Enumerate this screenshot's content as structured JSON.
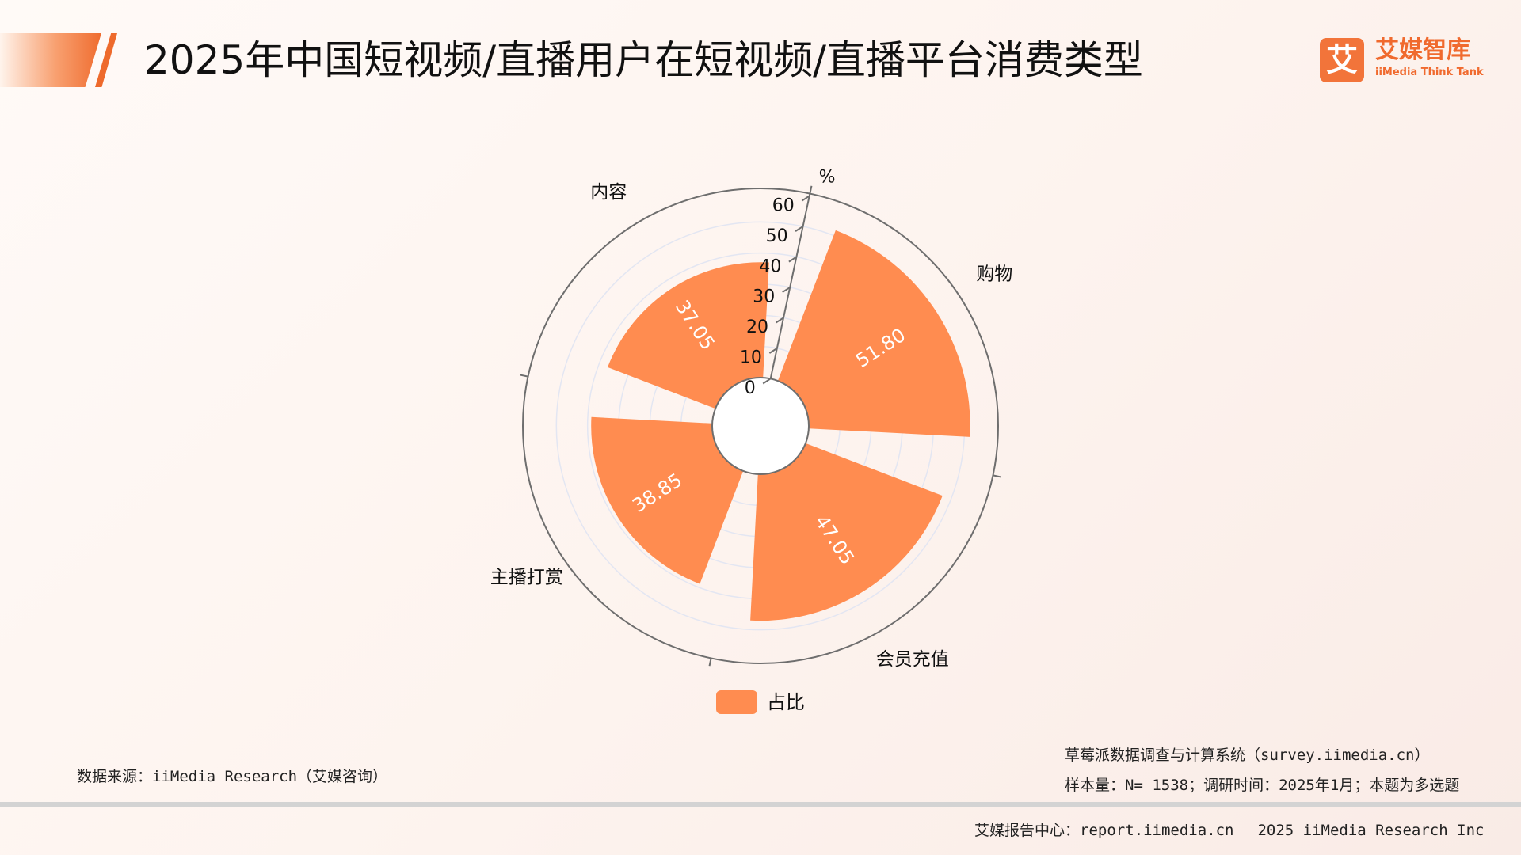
{
  "header": {
    "title": "2025年中国短视频/直播用户在短视频/直播平台消费类型"
  },
  "logo": {
    "glyph": "艾",
    "name_cn": "艾媒智库",
    "name_en": "iiMedia Think Tank"
  },
  "chart_data": {
    "type": "polar-bar",
    "unit": "%",
    "categories": [
      "购物",
      "会员充值",
      "主播打赏",
      "内容"
    ],
    "series": [
      {
        "name": "占比",
        "values": [
          51.8,
          47.05,
          38.85,
          37.05
        ],
        "color": "#ff8c50"
      }
    ],
    "value_labels": [
      "51.80",
      "47.05",
      "38.85",
      "37.05"
    ],
    "radial_axis": {
      "min": 0,
      "max": 60,
      "ticks": [
        0,
        10,
        20,
        30,
        40,
        50,
        60
      ],
      "tick_labels": [
        "0",
        "10",
        "20",
        "30",
        "40",
        "50",
        "60"
      ]
    },
    "grid": true,
    "legend": "bottom-center"
  },
  "footer": {
    "source": "数据来源：iiMedia Research（艾媒咨询）",
    "system": "草莓派数据调查与计算系统（survey.iimedia.cn）",
    "sample": "样本量：N= 1538；调研时间：2025年1月；本题为多选题",
    "report_center": "艾媒报告中心：report.iimedia.cn",
    "copyright": "2025 iiMedia Research Inc"
  }
}
